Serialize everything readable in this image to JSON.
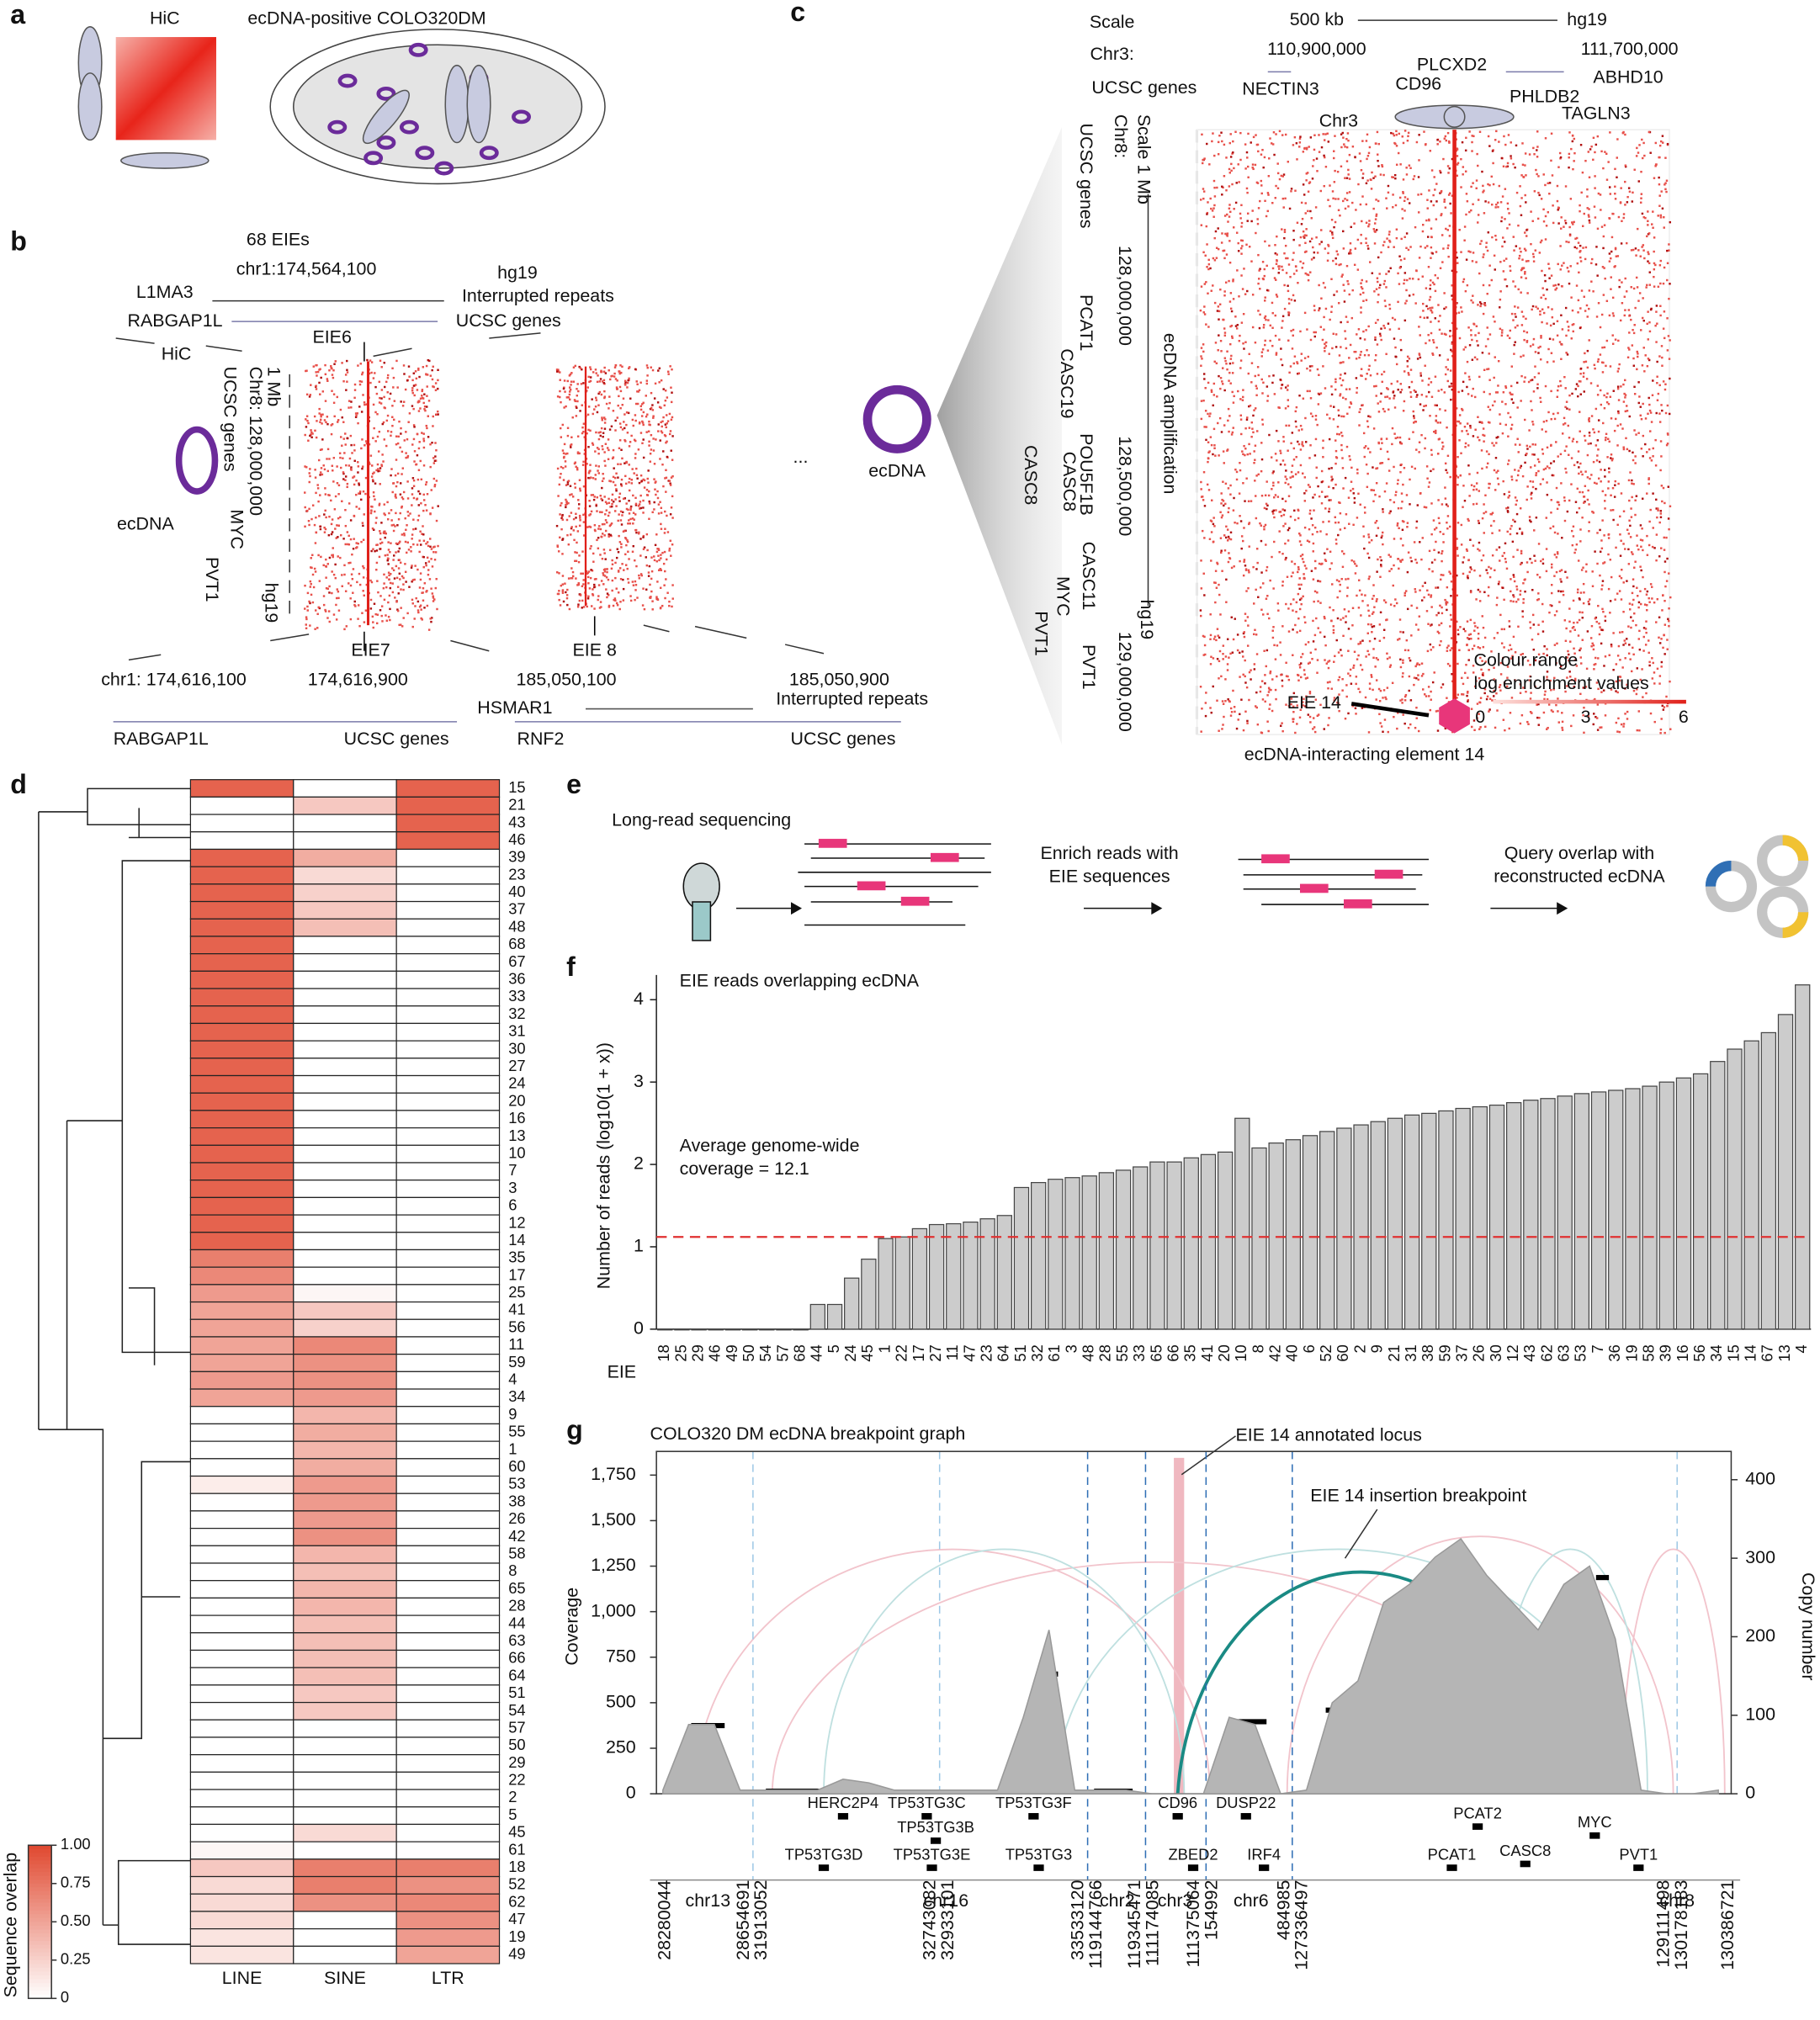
{
  "panels": {
    "letters": [
      "a",
      "b",
      "c",
      "d",
      "e",
      "f",
      "g"
    ],
    "a": [
      "HiC",
      "ecDNA-positive COLO320DM"
    ],
    "b": [
      "68 EIEs",
      "chr1:174,564,100",
      "hg19",
      "Interrupted repeats",
      "L1MA3",
      "RABGAP1L",
      "UCSC genes",
      "HiC",
      "EIE6",
      "1 Mb",
      "Chr8: 128,000,000",
      "UCSC genes",
      "ecDNA",
      "MYC",
      "PVT1",
      "hg19",
      "EIE7",
      "EIE 8",
      "...",
      "chr1: 174,616,100",
      "174,616,900",
      "185,050,100",
      "185,050,900",
      "Interrupted repeats",
      "HSMAR1",
      "RABGAP1L",
      "UCSC genes",
      "RNF2",
      "UCSC genes"
    ],
    "c": [
      "Scale",
      "500 kb",
      "hg19",
      "Chr3:",
      "110,900,000",
      "111,700,000",
      "UCSC genes",
      "NECTIN3",
      "PLCXD2",
      "CD96",
      "ABHD10",
      "PHLDB2",
      "TAGLN3",
      "Chr3",
      "Scale 1 Mb",
      "Chr8:",
      "UCSC genes",
      "128,000,000",
      "PCAT1",
      "CASC19",
      "ecDNA amplification",
      "128,500,000",
      "POU5F1B",
      "CASC8",
      "CASC8",
      "CASC11",
      "MYC",
      "PVT1",
      "PVT1",
      "hg19",
      "129,000,000",
      "ecDNA",
      "EIE 14",
      "Colour range",
      "log enrichment values",
      "0",
      "3",
      "6",
      "ecDNA-interacting element 14"
    ],
    "e": [
      "Long-read sequencing",
      "Enrich reads with",
      "EIE sequences",
      "Query overlap with",
      "reconstructed ecDNA"
    ]
  },
  "chart_data": [
    {
      "type": "bar",
      "title": "EIE reads overlapping ecDNA",
      "ylabel": "Number of reads (log10(1 + x))",
      "xlabel": "EIE",
      "annotation": [
        "Average genome-wide",
        "coverage = 12.1"
      ],
      "categories": [
        18,
        25,
        29,
        46,
        49,
        50,
        54,
        57,
        68,
        44,
        5,
        24,
        45,
        1,
        22,
        17,
        27,
        11,
        47,
        23,
        64,
        51,
        32,
        61,
        3,
        48,
        28,
        55,
        33,
        65,
        66,
        35,
        41,
        20,
        10,
        8,
        42,
        40,
        6,
        52,
        60,
        2,
        9,
        21,
        31,
        38,
        59,
        37,
        26,
        30,
        12,
        43,
        62,
        63,
        53,
        7,
        36,
        19,
        58,
        39,
        16,
        56,
        34,
        15,
        14,
        67,
        13,
        4
      ],
      "values": [
        0,
        0,
        0,
        0,
        0,
        0,
        0,
        0,
        0,
        0.3,
        0.3,
        0.62,
        0.85,
        1.1,
        1.12,
        1.22,
        1.27,
        1.28,
        1.3,
        1.34,
        1.38,
        1.72,
        1.78,
        1.82,
        1.84,
        1.86,
        1.9,
        1.93,
        1.97,
        2.03,
        2.03,
        2.08,
        2.12,
        2.15,
        2.56,
        2.2,
        2.26,
        2.3,
        2.35,
        2.4,
        2.44,
        2.48,
        2.52,
        2.56,
        2.6,
        2.62,
        2.65,
        2.68,
        2.7,
        2.72,
        2.75,
        2.78,
        2.8,
        2.83,
        2.86,
        2.88,
        2.9,
        2.92,
        2.95,
        3.0,
        3.05,
        3.1,
        3.25,
        3.4,
        3.5,
        3.6,
        3.82,
        4.18
      ],
      "color": "#cccccc",
      "ylim": [
        0,
        4.3
      ],
      "yticks": [
        0,
        1,
        2,
        3,
        4
      ],
      "reference_line": 1.12,
      "reference_color": "#e03030",
      "highlight": 14,
      "highlight_color": "#e05a5a"
    },
    {
      "type": "heatmap",
      "columns": [
        "LINE",
        "SINE",
        "LTR"
      ],
      "rows": [
        15,
        21,
        43,
        46,
        39,
        23,
        40,
        37,
        48,
        68,
        67,
        36,
        33,
        32,
        31,
        30,
        27,
        24,
        20,
        16,
        13,
        10,
        7,
        3,
        6,
        12,
        14,
        35,
        17,
        25,
        41,
        56,
        11,
        59,
        4,
        34,
        9,
        55,
        1,
        60,
        53,
        38,
        26,
        42,
        58,
        8,
        65,
        28,
        44,
        63,
        66,
        64,
        51,
        54,
        57,
        50,
        29,
        22,
        2,
        5,
        45,
        61,
        18,
        52,
        62,
        47,
        19,
        49
      ],
      "values": [
        [
          0.85,
          0,
          0.85
        ],
        [
          0,
          0.3,
          0.85
        ],
        [
          0,
          0,
          0.85
        ],
        [
          0,
          0,
          0.85
        ],
        [
          0.85,
          0.45,
          0
        ],
        [
          0.85,
          0.2,
          0
        ],
        [
          0.85,
          0.25,
          0
        ],
        [
          0.85,
          0.3,
          0
        ],
        [
          0.85,
          0.35,
          0
        ],
        [
          0.85,
          0,
          0
        ],
        [
          0.85,
          0,
          0
        ],
        [
          0.85,
          0,
          0
        ],
        [
          0.85,
          0,
          0
        ],
        [
          0.85,
          0,
          0
        ],
        [
          0.85,
          0,
          0
        ],
        [
          0.85,
          0,
          0
        ],
        [
          0.85,
          0,
          0
        ],
        [
          0.85,
          0,
          0
        ],
        [
          0.85,
          0,
          0
        ],
        [
          0.85,
          0,
          0
        ],
        [
          0.85,
          0,
          0
        ],
        [
          0.85,
          0,
          0
        ],
        [
          0.85,
          0,
          0
        ],
        [
          0.85,
          0,
          0
        ],
        [
          0.85,
          0,
          0
        ],
        [
          0.85,
          0,
          0
        ],
        [
          0.85,
          0,
          0
        ],
        [
          0.7,
          0,
          0
        ],
        [
          0.65,
          0,
          0
        ],
        [
          0.55,
          0.05,
          0
        ],
        [
          0.5,
          0.3,
          0
        ],
        [
          0.5,
          0.25,
          0
        ],
        [
          0.5,
          0.65,
          0
        ],
        [
          0.5,
          0.6,
          0
        ],
        [
          0.55,
          0.6,
          0
        ],
        [
          0.5,
          0.55,
          0
        ],
        [
          0,
          0.4,
          0
        ],
        [
          0,
          0.45,
          0
        ],
        [
          0,
          0.4,
          0
        ],
        [
          0,
          0.45,
          0
        ],
        [
          0.1,
          0.55,
          0
        ],
        [
          0,
          0.55,
          0
        ],
        [
          0,
          0.55,
          0
        ],
        [
          0,
          0.6,
          0
        ],
        [
          0,
          0.4,
          0
        ],
        [
          0,
          0.35,
          0
        ],
        [
          0,
          0.4,
          0
        ],
        [
          0,
          0.4,
          0
        ],
        [
          0,
          0.35,
          0
        ],
        [
          0,
          0.35,
          0
        ],
        [
          0,
          0.35,
          0
        ],
        [
          0,
          0.35,
          0
        ],
        [
          0,
          0.3,
          0
        ],
        [
          0,
          0.3,
          0
        ],
        [
          0,
          0,
          0
        ],
        [
          0,
          0,
          0
        ],
        [
          0,
          0,
          0
        ],
        [
          0,
          0,
          0
        ],
        [
          0,
          0,
          0
        ],
        [
          0,
          0,
          0
        ],
        [
          0,
          0.2,
          0
        ],
        [
          0.05,
          0,
          0
        ],
        [
          0.3,
          0.7,
          0.7
        ],
        [
          0.2,
          0.7,
          0.6
        ],
        [
          0.2,
          0.6,
          0.65
        ],
        [
          0.2,
          0,
          0.6
        ],
        [
          0.15,
          0,
          0.55
        ],
        [
          0.15,
          0,
          0.5
        ]
      ],
      "color": "#e0482f",
      "colorbar_label": "Sequence overlap",
      "clim": [
        0,
        1
      ],
      "cticks": [
        0,
        0.25,
        {
          "value": 0.5,
          "label": "0.50"
        },
        0.75,
        {
          "value": 1,
          "label": "1.00"
        }
      ]
    },
    {
      "type": "area",
      "title": "COLO320 DM ecDNA breakpoint graph",
      "ylabel": "Coverage",
      "y2label": "Copy number",
      "values": [
        20,
        380,
        380,
        20,
        20,
        20,
        20,
        80,
        60,
        20,
        20,
        20,
        20,
        20,
        420,
        900,
        20,
        20,
        20,
        0,
        0,
        0,
        420,
        380,
        0,
        20,
        500,
        620,
        1050,
        1150,
        1300,
        1400,
        1200,
        1050,
        900,
        1150,
        1250,
        850,
        20,
        0,
        0,
        20
      ],
      "color": "#b5b5b5",
      "ylim": [
        0,
        1880
      ],
      "yticks": [
        0,
        250,
        500,
        750,
        {
          "value": 1000,
          "label": "1,000"
        },
        {
          "value": 1250,
          "label": "1,250"
        },
        {
          "value": 1500,
          "label": "1,500"
        },
        {
          "value": 1750,
          "label": "1,750"
        }
      ],
      "y2lim": [
        0,
        436
      ],
      "y2ticks": [
        0,
        100,
        200,
        300,
        400
      ],
      "annotations": [
        "EIE 14 annotated locus",
        "EIE 14 insertion breakpoint"
      ],
      "chromosomes": [
        "chr13",
        "chr16",
        "chr2",
        "chr3",
        "chr6",
        "chr8"
      ],
      "genes": [
        "HERC2P4",
        "TP53TG3C",
        "TP53TG3F",
        "CD96",
        "DUSP22",
        "TP53TG3B",
        "PCAT2",
        "MYC",
        "CASC8",
        "TP53TG3D",
        "TP53TG3E",
        "TP53TG3",
        "ZBED2",
        "IRF4",
        "PCAT1",
        "PVT1"
      ],
      "coordinates": [
        28280044,
        28654691,
        31913052,
        32743082,
        32933101,
        33533120,
        119144766,
        119345471,
        111174085,
        111375064,
        154992,
        484985,
        127336497,
        129111498,
        130178183,
        130386721
      ]
    }
  ]
}
